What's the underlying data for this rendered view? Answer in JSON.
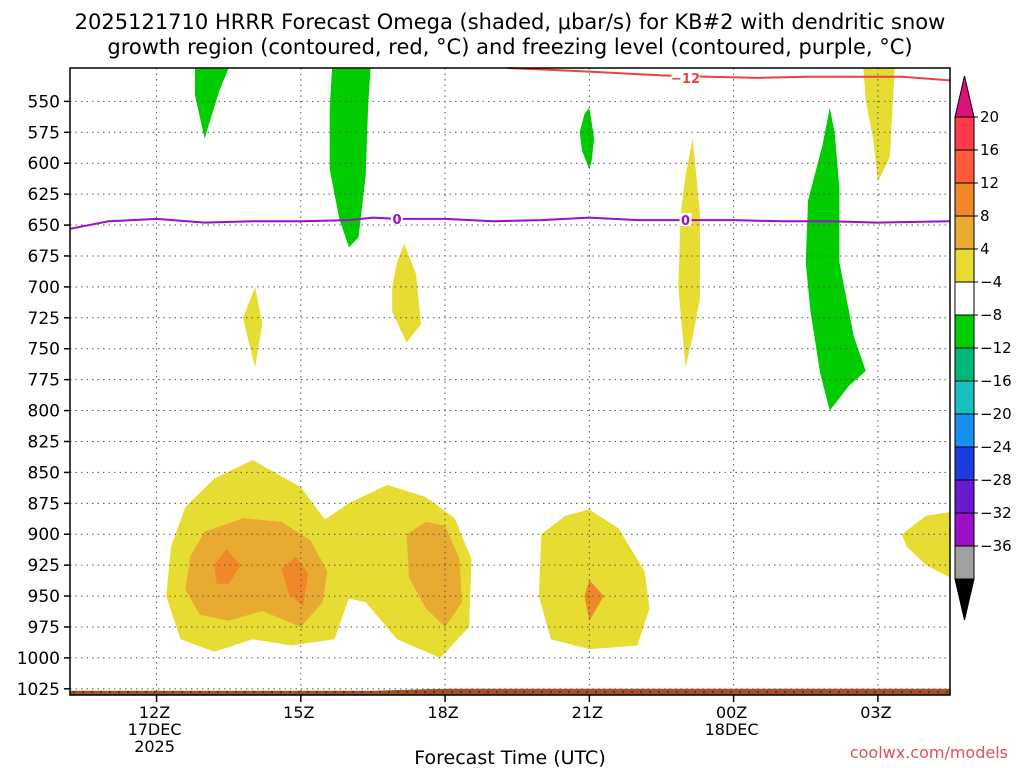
{
  "chart_data": {
    "type": "heatmap",
    "title_line1": "2025121710 HRRR Forecast Omega (shaded, μbar/s) for KB#2 with dendritic snow",
    "title_line2": "growth region (contoured, red, °C) and freezing level (contoured, purple, °C)",
    "xlabel": "Forecast Time (UTC)",
    "credit": "coolwx.com/models",
    "xlim": [
      10.2,
      28.5
    ],
    "ylim": [
      1030,
      523
    ],
    "y_ticks": [
      550,
      575,
      600,
      625,
      650,
      675,
      700,
      725,
      750,
      775,
      800,
      825,
      850,
      875,
      900,
      925,
      950,
      975,
      1000,
      1025
    ],
    "x_ticks": [
      {
        "t": 12,
        "l1": "12Z",
        "l2": "17DEC",
        "l3": "2025"
      },
      {
        "t": 15,
        "l1": "15Z",
        "l2": "",
        "l3": ""
      },
      {
        "t": 18,
        "l1": "18Z",
        "l2": "",
        "l3": ""
      },
      {
        "t": 21,
        "l1": "21Z",
        "l2": "",
        "l3": ""
      },
      {
        "t": 24,
        "l1": "00Z",
        "l2": "18DEC",
        "l3": ""
      },
      {
        "t": 27,
        "l1": "03Z",
        "l2": "",
        "l3": ""
      }
    ],
    "colorbar": {
      "labels": [
        "20",
        "16",
        "12",
        "8",
        "4",
        "−4",
        "−8",
        "−12",
        "−16",
        "−20",
        "−24",
        "−28",
        "−32",
        "−36"
      ],
      "colors": [
        "#ff3b4a",
        "#ff5a3a",
        "#f0882a",
        "#e8aa30",
        "#e6dc32",
        "#ffffff",
        "#00cc00",
        "#00b87a",
        "#18c0c0",
        "#1890f0",
        "#1c3ce0",
        "#6a1ad0",
        "#9a10c8",
        "#a0a0a0"
      ],
      "top_arrow_color": "#e0107a",
      "bottom_arrow_color": "#000000"
    },
    "surface_color": "#a0522d",
    "shaded_regions": [
      {
        "level": "-4",
        "color": "#00cc00",
        "pts": [
          [
            12.8,
            523
          ],
          [
            13.5,
            523
          ],
          [
            13.3,
            542
          ],
          [
            13.0,
            580
          ],
          [
            12.8,
            545
          ]
        ]
      },
      {
        "level": "-4",
        "color": "#00cc00",
        "pts": [
          [
            15.65,
            523
          ],
          [
            16.45,
            523
          ],
          [
            16.4,
            555
          ],
          [
            16.35,
            610
          ],
          [
            16.2,
            660
          ],
          [
            16.0,
            668
          ],
          [
            15.8,
            645
          ],
          [
            15.6,
            605
          ],
          [
            15.6,
            555
          ]
        ]
      },
      {
        "level": "-4",
        "color": "#00cc00",
        "pts": [
          [
            20.9,
            560
          ],
          [
            21.0,
            555
          ],
          [
            21.1,
            580
          ],
          [
            21.05,
            598
          ],
          [
            21.0,
            605
          ],
          [
            20.85,
            590
          ],
          [
            20.8,
            575
          ]
        ]
      },
      {
        "level": "-4",
        "color": "#00cc00",
        "pts": [
          [
            25.85,
            585
          ],
          [
            26.0,
            555
          ],
          [
            26.1,
            575
          ],
          [
            26.2,
            620
          ],
          [
            26.2,
            680
          ],
          [
            26.5,
            740
          ],
          [
            26.75,
            768
          ],
          [
            26.4,
            780
          ],
          [
            26.0,
            800
          ],
          [
            25.8,
            770
          ],
          [
            25.6,
            720
          ],
          [
            25.5,
            680
          ],
          [
            25.55,
            630
          ]
        ]
      },
      {
        "level": "4",
        "color": "#e6dc32",
        "pts": [
          [
            26.7,
            523
          ],
          [
            27.35,
            523
          ],
          [
            27.3,
            560
          ],
          [
            27.25,
            595
          ],
          [
            27.0,
            615
          ],
          [
            26.9,
            580
          ],
          [
            26.75,
            550
          ]
        ]
      },
      {
        "level": "4",
        "color": "#e6dc32",
        "pts": [
          [
            23.0,
            610
          ],
          [
            23.15,
            580
          ],
          [
            23.3,
            640
          ],
          [
            23.3,
            710
          ],
          [
            23.15,
            740
          ],
          [
            23.0,
            765
          ],
          [
            22.85,
            700
          ],
          [
            22.9,
            640
          ]
        ]
      },
      {
        "level": "4",
        "color": "#e6dc32",
        "pts": [
          [
            13.8,
            725
          ],
          [
            14.05,
            700
          ],
          [
            14.2,
            730
          ],
          [
            14.05,
            765
          ],
          [
            13.9,
            742
          ]
        ]
      },
      {
        "level": "4",
        "color": "#e6dc32",
        "pts": [
          [
            17.0,
            680
          ],
          [
            17.15,
            665
          ],
          [
            17.4,
            690
          ],
          [
            17.5,
            730
          ],
          [
            17.2,
            745
          ],
          [
            16.9,
            720
          ],
          [
            16.9,
            700
          ]
        ]
      },
      {
        "level": "4",
        "color": "#e6dc32",
        "pts": [
          [
            12.3,
            910
          ],
          [
            12.6,
            878
          ],
          [
            13.2,
            855
          ],
          [
            14.0,
            840
          ],
          [
            15.0,
            862
          ],
          [
            15.5,
            888
          ],
          [
            16.0,
            875
          ],
          [
            16.8,
            860
          ],
          [
            17.6,
            870
          ],
          [
            18.2,
            887
          ],
          [
            18.55,
            920
          ],
          [
            18.5,
            975
          ],
          [
            17.9,
            1000
          ],
          [
            17.0,
            985
          ],
          [
            16.35,
            955
          ],
          [
            16.0,
            952
          ],
          [
            15.7,
            985
          ],
          [
            14.8,
            990
          ],
          [
            14.0,
            985
          ],
          [
            13.2,
            995
          ],
          [
            12.5,
            985
          ],
          [
            12.2,
            950
          ]
        ]
      },
      {
        "level": "4",
        "color": "#e6dc32",
        "pts": [
          [
            20.0,
            900
          ],
          [
            20.5,
            885
          ],
          [
            21.0,
            880
          ],
          [
            21.6,
            895
          ],
          [
            22.15,
            930
          ],
          [
            22.25,
            960
          ],
          [
            22.0,
            990
          ],
          [
            21.0,
            993
          ],
          [
            20.2,
            985
          ],
          [
            19.95,
            950
          ]
        ]
      },
      {
        "level": "4",
        "color": "#e6dc32",
        "pts": [
          [
            27.5,
            900
          ],
          [
            28.0,
            885
          ],
          [
            28.5,
            882
          ],
          [
            28.5,
            935
          ],
          [
            28.0,
            925
          ],
          [
            27.6,
            910
          ]
        ]
      },
      {
        "level": "8",
        "color": "#e8aa30",
        "pts": [
          [
            12.7,
            918
          ],
          [
            13.0,
            898
          ],
          [
            13.8,
            887
          ],
          [
            14.6,
            890
          ],
          [
            15.2,
            905
          ],
          [
            15.55,
            930
          ],
          [
            15.45,
            955
          ],
          [
            15.0,
            975
          ],
          [
            14.2,
            962
          ],
          [
            13.5,
            970
          ],
          [
            12.9,
            965
          ],
          [
            12.6,
            945
          ]
        ]
      },
      {
        "level": "8",
        "color": "#e8aa30",
        "pts": [
          [
            17.2,
            900
          ],
          [
            17.6,
            890
          ],
          [
            18.0,
            893
          ],
          [
            18.3,
            920
          ],
          [
            18.35,
            955
          ],
          [
            18.0,
            975
          ],
          [
            17.6,
            960
          ],
          [
            17.25,
            935
          ]
        ]
      },
      {
        "level": "12",
        "color": "#f0882a",
        "pts": [
          [
            13.2,
            925
          ],
          [
            13.45,
            912
          ],
          [
            13.75,
            925
          ],
          [
            13.5,
            940
          ],
          [
            13.25,
            940
          ]
        ]
      },
      {
        "level": "12",
        "color": "#f0882a",
        "pts": [
          [
            14.6,
            928
          ],
          [
            14.9,
            918
          ],
          [
            15.15,
            932
          ],
          [
            15.05,
            958
          ],
          [
            14.75,
            948
          ]
        ]
      },
      {
        "level": "12",
        "color": "#f0882a",
        "pts": [
          [
            20.9,
            950
          ],
          [
            21.0,
            937
          ],
          [
            21.3,
            950
          ],
          [
            21.0,
            970
          ]
        ]
      }
    ],
    "dgz_contour": {
      "label": "−12",
      "color": "#f04040",
      "label_at": [
        23.0,
        531
      ],
      "pts": [
        [
          19.3,
          523
        ],
        [
          20.5,
          525
        ],
        [
          21.5,
          527
        ],
        [
          22.5,
          529
        ],
        [
          23.5,
          530
        ],
        [
          24.5,
          531
        ],
        [
          25.5,
          530
        ],
        [
          26.5,
          530
        ],
        [
          27.5,
          530
        ],
        [
          28.5,
          533
        ]
      ]
    },
    "freezing_contour": {
      "label": "0",
      "color": "#9a10c8",
      "label_at": [
        [
          17.0,
          645
        ],
        [
          23.0,
          646
        ]
      ],
      "pts": [
        [
          10.2,
          653
        ],
        [
          11.0,
          647
        ],
        [
          12.0,
          645
        ],
        [
          13.0,
          648
        ],
        [
          14.0,
          647
        ],
        [
          15.0,
          647
        ],
        [
          16.0,
          646
        ],
        [
          16.5,
          644
        ],
        [
          17.0,
          645
        ],
        [
          18.0,
          645
        ],
        [
          19.0,
          647
        ],
        [
          20.0,
          646
        ],
        [
          21.0,
          644
        ],
        [
          22.0,
          646
        ],
        [
          23.0,
          646
        ],
        [
          24.0,
          646
        ],
        [
          25.0,
          647
        ],
        [
          26.0,
          647
        ],
        [
          27.0,
          648
        ],
        [
          28.5,
          647
        ]
      ]
    }
  }
}
